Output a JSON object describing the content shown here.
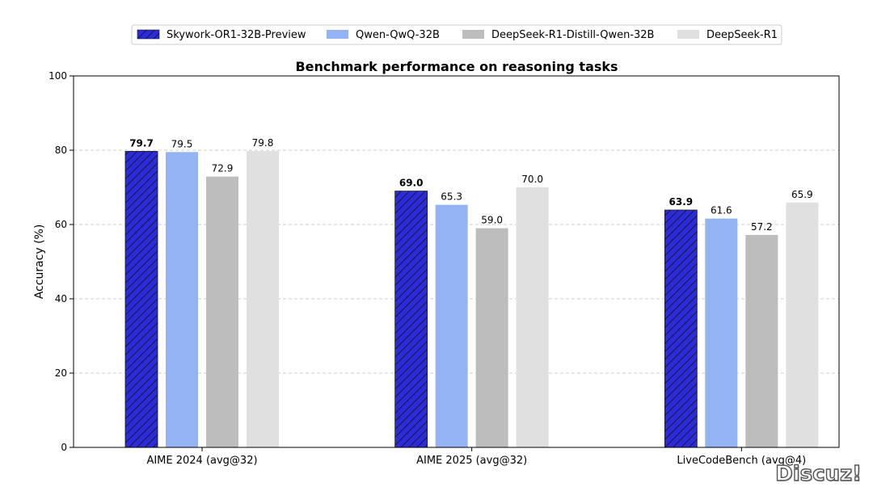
{
  "chart_data": {
    "type": "bar",
    "title": "Benchmark performance on reasoning tasks",
    "xlabel": "",
    "ylabel": "Accuracy (%)",
    "ylim": [
      0,
      100
    ],
    "yticks": [
      0,
      20,
      40,
      60,
      80,
      100
    ],
    "grid": "y-dashed",
    "legend_placement": "top-center",
    "categories": [
      "AIME 2024 (avg@32)",
      "AIME 2025 (avg@32)",
      "LiveCodeBench (avg@4)"
    ],
    "series": [
      {
        "name": "Skywork-OR1-32B-Preview",
        "values": [
          79.7,
          69.0,
          63.9
        ],
        "labels": [
          "79.7",
          "69.0",
          "63.9"
        ],
        "color": "#2b2bd9",
        "hatch": true,
        "bold_labels": true
      },
      {
        "name": "Qwen-QwQ-32B",
        "values": [
          79.5,
          65.3,
          61.6
        ],
        "labels": [
          "79.5",
          "65.3",
          "61.6"
        ],
        "color": "#94b3f2",
        "hatch": false,
        "bold_labels": false
      },
      {
        "name": "DeepSeek-R1-Distill-Qwen-32B",
        "values": [
          72.9,
          59.0,
          57.2
        ],
        "labels": [
          "72.9",
          "59.0",
          "57.2"
        ],
        "color": "#bdbdbd",
        "hatch": false,
        "bold_labels": false
      },
      {
        "name": "DeepSeek-R1",
        "values": [
          79.8,
          70.0,
          65.9
        ],
        "labels": [
          "79.8",
          "70.0",
          "65.9"
        ],
        "color": "#e0e0e0",
        "hatch": false,
        "bold_labels": false
      }
    ]
  },
  "watermark": {
    "text": "Discuz!"
  }
}
